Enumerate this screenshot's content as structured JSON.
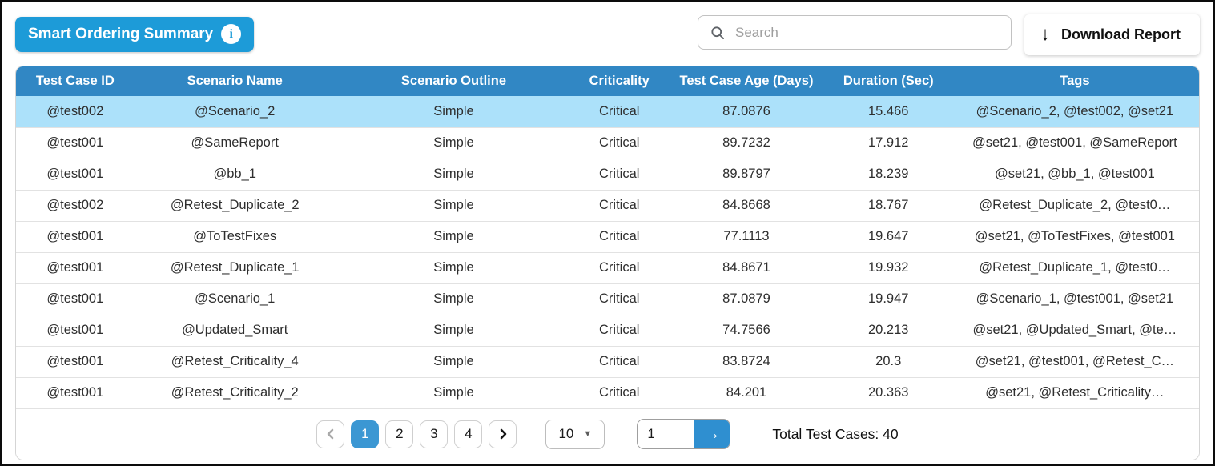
{
  "header": {
    "title": "Smart Ordering Summary",
    "search_placeholder": "Search",
    "download_label": "Download Report"
  },
  "icons": {
    "info": "i",
    "download": "↓",
    "dropdown_caret": "▼",
    "goto_arrow": "→"
  },
  "table": {
    "columns": [
      "Test Case ID",
      "Scenario Name",
      "Scenario Outline",
      "Criticality",
      "Test Case Age (Days)",
      "Duration (Sec)",
      "Tags"
    ],
    "rows": [
      {
        "id": "@test002",
        "name": "@Scenario_2",
        "outline": "Simple",
        "criticality": "Critical",
        "age": "87.0876",
        "duration": "15.466",
        "tags": "@Scenario_2, @test002, @set21",
        "selected": true
      },
      {
        "id": "@test001",
        "name": "@SameReport",
        "outline": "Simple",
        "criticality": "Critical",
        "age": "89.7232",
        "duration": "17.912",
        "tags": "@set21, @test001, @SameReport",
        "selected": false
      },
      {
        "id": "@test001",
        "name": "@bb_1",
        "outline": "Simple",
        "criticality": "Critical",
        "age": "89.8797",
        "duration": "18.239",
        "tags": "@set21, @bb_1, @test001",
        "selected": false
      },
      {
        "id": "@test002",
        "name": "@Retest_Duplicate_2",
        "outline": "Simple",
        "criticality": "Critical",
        "age": "84.8668",
        "duration": "18.767",
        "tags": "@Retest_Duplicate_2, @test0…",
        "selected": false
      },
      {
        "id": "@test001",
        "name": "@ToTestFixes",
        "outline": "Simple",
        "criticality": "Critical",
        "age": "77.1113",
        "duration": "19.647",
        "tags": "@set21, @ToTestFixes, @test001",
        "selected": false
      },
      {
        "id": "@test001",
        "name": "@Retest_Duplicate_1",
        "outline": "Simple",
        "criticality": "Critical",
        "age": "84.8671",
        "duration": "19.932",
        "tags": "@Retest_Duplicate_1, @test0…",
        "selected": false
      },
      {
        "id": "@test001",
        "name": "@Scenario_1",
        "outline": "Simple",
        "criticality": "Critical",
        "age": "87.0879",
        "duration": "19.947",
        "tags": "@Scenario_1, @test001, @set21",
        "selected": false
      },
      {
        "id": "@test001",
        "name": "@Updated_Smart",
        "outline": "Simple",
        "criticality": "Critical",
        "age": "74.7566",
        "duration": "20.213",
        "tags": "@set21, @Updated_Smart, @te…",
        "selected": false
      },
      {
        "id": "@test001",
        "name": "@Retest_Criticality_4",
        "outline": "Simple",
        "criticality": "Critical",
        "age": "83.8724",
        "duration": "20.3",
        "tags": "@set21, @test001, @Retest_C…",
        "selected": false
      },
      {
        "id": "@test001",
        "name": "@Retest_Criticality_2",
        "outline": "Simple",
        "criticality": "Critical",
        "age": "84.201",
        "duration": "20.363",
        "tags": "@set21, @Retest_Criticality…",
        "selected": false
      }
    ]
  },
  "pagination": {
    "pages": [
      "1",
      "2",
      "3",
      "4"
    ],
    "active_page": "1",
    "page_size": "10",
    "goto_value": "1",
    "total_label": "Total Test Cases: 40"
  },
  "colors": {
    "badge_blue": "#1d9bd8",
    "table_header_blue": "#3187c4",
    "selected_row_blue": "#ace1fa",
    "active_page_blue": "#3b97d3",
    "goto_button_blue": "#2f8fd0"
  }
}
